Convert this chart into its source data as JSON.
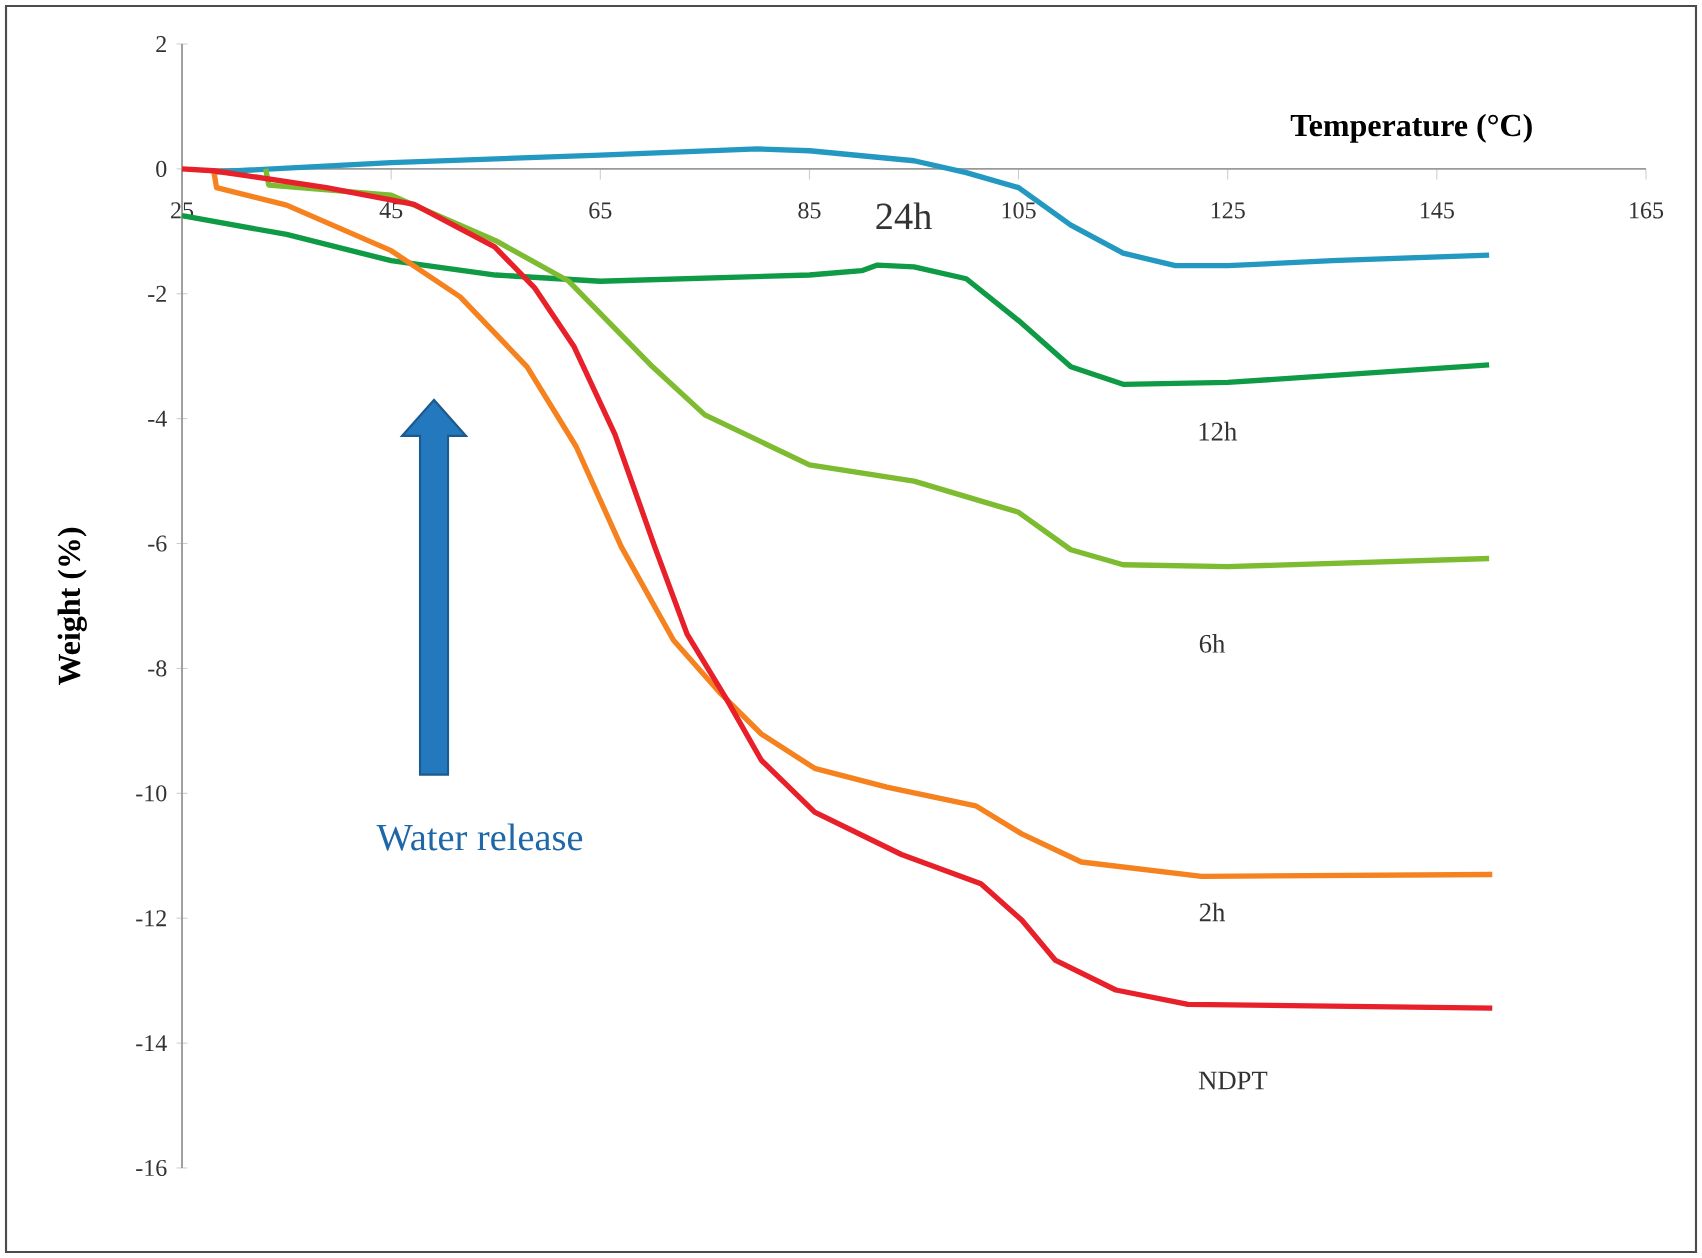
{
  "chart_data": {
    "type": "line",
    "xlabel": "Temperature (°C)",
    "ylabel": "Weight (%)",
    "xlim": [
      25,
      165
    ],
    "ylim": [
      -16,
      2
    ],
    "xticks": [
      25,
      45,
      65,
      85,
      105,
      125,
      145,
      165
    ],
    "yticks": [
      -16,
      -14,
      -12,
      -10,
      -8,
      -6,
      -4,
      -2,
      0,
      2
    ],
    "marker": "none",
    "line_style": "solid",
    "annotations": [
      "Water release"
    ],
    "series": [
      {
        "name": "24h",
        "color": "#2398c0",
        "x": [
          28,
          45,
          65,
          80,
          85,
          95,
          100,
          105,
          110,
          115,
          120,
          125,
          135,
          150
        ],
        "values": [
          -0.05,
          0.1,
          0.22,
          0.32,
          0.29,
          0.13,
          -0.06,
          -0.3,
          -0.9,
          -1.35,
          -1.55,
          -1.55,
          -1.47,
          -1.38
        ]
      },
      {
        "name": "12h",
        "color": "#0f9a45",
        "x": [
          25,
          35,
          45,
          55,
          65,
          85,
          90,
          91.5,
          95,
          100,
          105,
          110,
          115,
          125,
          150
        ],
        "values": [
          -0.75,
          -1.05,
          -1.47,
          -1.7,
          -1.8,
          -1.7,
          -1.63,
          -1.54,
          -1.57,
          -1.76,
          -2.43,
          -3.17,
          -3.45,
          -3.42,
          -3.14
        ]
      },
      {
        "name": "6h",
        "color": "#7dbb30",
        "x": [
          33,
          33.3,
          45,
          55,
          62,
          70,
          75,
          85,
          95,
          105,
          110,
          115,
          125,
          150
        ],
        "values": [
          0,
          -0.26,
          -0.42,
          -1.15,
          -1.8,
          -3.17,
          -3.94,
          -4.74,
          -5.0,
          -5.5,
          -6.1,
          -6.34,
          -6.37,
          -6.24
        ]
      },
      {
        "name": "2h",
        "color": "#f5821f",
        "x": [
          28,
          28.3,
          35,
          45,
          51.6,
          58,
          62.7,
          67,
          72,
          76.5,
          80.4,
          85.5,
          92.4,
          100.9,
          105.3,
          111,
          122.5,
          150.3
        ],
        "values": [
          0,
          -0.3,
          -0.58,
          -1.31,
          -2.05,
          -3.17,
          -4.45,
          -6.05,
          -7.55,
          -8.4,
          -9.05,
          -9.6,
          -9.9,
          -10.2,
          -10.65,
          -11.1,
          -11.33,
          -11.3
        ]
      },
      {
        "name": "NDPT",
        "color": "#e8202a",
        "x": [
          25,
          28,
          38.8,
          47.2,
          54.9,
          58.7,
          62.5,
          66.4,
          70.2,
          73.3,
          77.1,
          80.4,
          85.5,
          93.8,
          101.4,
          105.3,
          108.5,
          114.3,
          121.2,
          150.3
        ],
        "values": [
          0,
          -0.03,
          -0.3,
          -0.57,
          -1.25,
          -1.9,
          -2.85,
          -4.25,
          -6.05,
          -7.45,
          -8.5,
          -9.47,
          -10.3,
          -10.98,
          -11.45,
          -12.03,
          -12.67,
          -13.15,
          -13.38,
          -13.44
        ]
      }
    ]
  }
}
